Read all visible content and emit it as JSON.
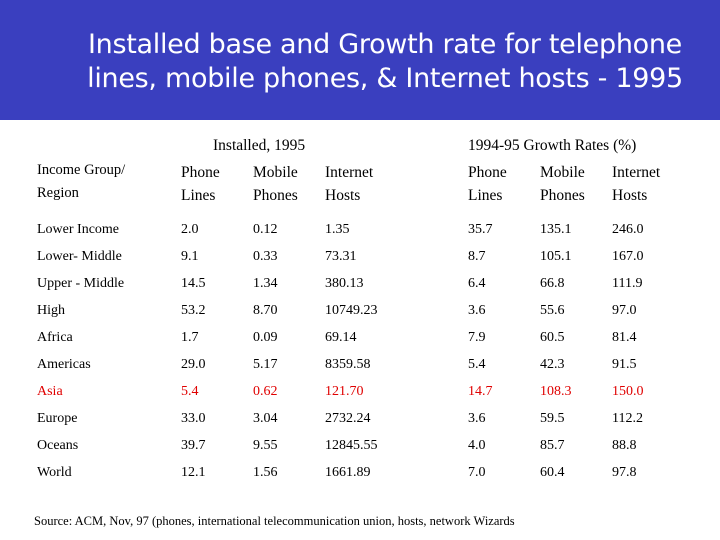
{
  "title": {
    "line1": "Installed base and Growth rate for telephone",
    "line2": "lines, mobile phones, & Internet hosts - 1995"
  },
  "table": {
    "group_headers": {
      "installed": "Installed, 1995",
      "growth": "1994-95 Growth Rates (%)"
    },
    "column_headers": [
      [
        "Income Group/",
        "Region"
      ],
      [
        "Phone",
        "Lines"
      ],
      [
        "Mobile",
        "Phones"
      ],
      [
        "Internet",
        "Hosts"
      ],
      [
        "Phone",
        "Lines"
      ],
      [
        "Mobile",
        "Phones"
      ],
      [
        "Internet",
        "Hosts"
      ]
    ],
    "rows": [
      {
        "label": "Lower Income",
        "values": [
          "2.0",
          "0.12",
          "1.35",
          "35.7",
          "135.1",
          "246.0"
        ]
      },
      {
        "label": "Lower- Middle",
        "values": [
          "9.1",
          "0.33",
          "73.31",
          "8.7",
          "105.1",
          "167.0"
        ]
      },
      {
        "label": "Upper - Middle",
        "values": [
          "14.5",
          "1.34",
          "380.13",
          "6.4",
          "66.8",
          "111.9"
        ]
      },
      {
        "label": "High",
        "values": [
          "53.2",
          "8.70",
          "10749.23",
          "3.6",
          "55.6",
          "97.0"
        ]
      },
      {
        "label": "Africa",
        "values": [
          "1.7",
          "0.09",
          "69.14",
          "7.9",
          "60.5",
          "81.4"
        ]
      },
      {
        "label": "Americas",
        "values": [
          "29.0",
          "5.17",
          "8359.58",
          "5.4",
          "42.3",
          "91.5"
        ]
      },
      {
        "label": "Asia",
        "values": [
          "5.4",
          "0.62",
          "121.70",
          "14.7",
          "108.3",
          "150.0"
        ],
        "highlight": true
      },
      {
        "label": "Europe",
        "values": [
          "33.0",
          "3.04",
          "2732.24",
          "3.6",
          "59.5",
          "112.2"
        ]
      },
      {
        "label": "Oceans",
        "values": [
          "39.7",
          "9.55",
          "12845.55",
          "4.0",
          "85.7",
          "88.8"
        ]
      },
      {
        "label": "World",
        "values": [
          "12.1",
          "1.56",
          "1661.89",
          "7.0",
          "60.4",
          "97.8"
        ]
      }
    ]
  },
  "colors": {
    "banner": "#3a3fbf",
    "title_text": "#ffffff",
    "highlight": "#e00000"
  },
  "source": "Source: ACM, Nov, 97 (phones, international telecommunication union, hosts, network Wizards"
}
